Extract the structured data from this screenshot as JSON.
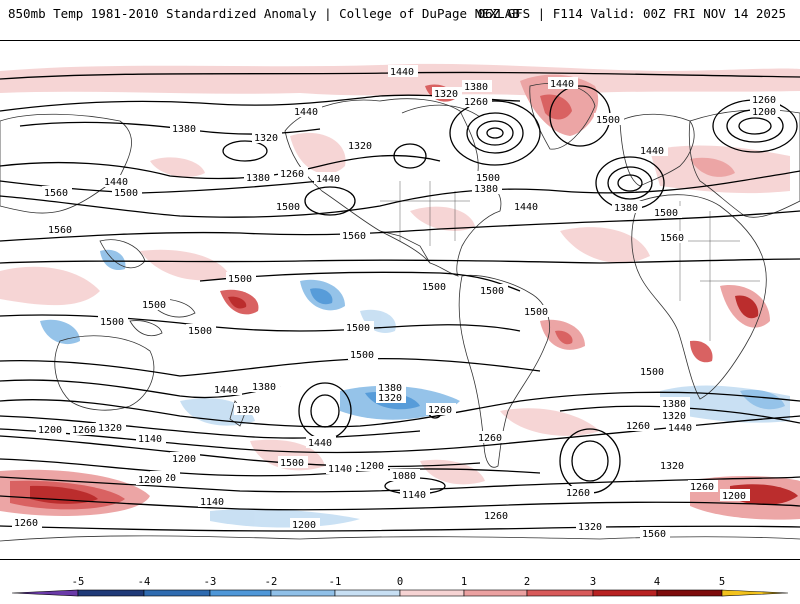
{
  "header": {
    "title": "850mb Temp 1981-2010 Standardized Anomaly | College of DuPage NEXLAB",
    "run_info": "06Z GFS | F114 Valid: 00Z FRI NOV 14 2025"
  },
  "contours": {
    "labels": [
      {
        "id": "c01",
        "text": "1440"
      },
      {
        "id": "c02",
        "text": "1380"
      },
      {
        "id": "c03",
        "text": "1320"
      },
      {
        "id": "c04",
        "text": "1260"
      },
      {
        "id": "c05",
        "text": "1440"
      },
      {
        "id": "c06",
        "text": "1500"
      },
      {
        "id": "c07",
        "text": "1440"
      },
      {
        "id": "c08",
        "text": "1380"
      },
      {
        "id": "c09",
        "text": "1260"
      },
      {
        "id": "c10",
        "text": "1200"
      },
      {
        "id": "c11",
        "text": "1440"
      },
      {
        "id": "c12",
        "text": "1380"
      },
      {
        "id": "c13",
        "text": "1320"
      },
      {
        "id": "c14",
        "text": "1320"
      },
      {
        "id": "c15",
        "text": "1440"
      },
      {
        "id": "c16",
        "text": "1500"
      },
      {
        "id": "c17",
        "text": "1380"
      },
      {
        "id": "c18",
        "text": "1260"
      },
      {
        "id": "c19",
        "text": "1440"
      },
      {
        "id": "c20",
        "text": "1560"
      },
      {
        "id": "c21",
        "text": "1500"
      },
      {
        "id": "c22",
        "text": "1440"
      },
      {
        "id": "c23",
        "text": "1380"
      },
      {
        "id": "c24",
        "text": "1500"
      },
      {
        "id": "c25",
        "text": "1560"
      },
      {
        "id": "c26",
        "text": "1500"
      },
      {
        "id": "c27",
        "text": "1560"
      },
      {
        "id": "c28",
        "text": "1560"
      },
      {
        "id": "c29",
        "text": "1500"
      },
      {
        "id": "c30",
        "text": "1500"
      },
      {
        "id": "c31",
        "text": "1500"
      },
      {
        "id": "c32",
        "text": "1500"
      },
      {
        "id": "c33",
        "text": "1500"
      },
      {
        "id": "c34",
        "text": "1500"
      },
      {
        "id": "c35",
        "text": "1500"
      },
      {
        "id": "c36",
        "text": "1500"
      },
      {
        "id": "c37",
        "text": "1500"
      },
      {
        "id": "c38",
        "text": "1440"
      },
      {
        "id": "c39",
        "text": "1380"
      },
      {
        "id": "c40",
        "text": "1320"
      },
      {
        "id": "c41",
        "text": "1260"
      },
      {
        "id": "c42",
        "text": "1200"
      },
      {
        "id": "c43",
        "text": "1140"
      },
      {
        "id": "c44",
        "text": "1200"
      },
      {
        "id": "c45",
        "text": "1320"
      },
      {
        "id": "c46",
        "text": "1500"
      },
      {
        "id": "c47",
        "text": "1440"
      },
      {
        "id": "c48",
        "text": "1380"
      },
      {
        "id": "c49",
        "text": "1320"
      },
      {
        "id": "c50",
        "text": "1260"
      },
      {
        "id": "c51",
        "text": "1200"
      },
      {
        "id": "c52",
        "text": "1140"
      },
      {
        "id": "c53",
        "text": "1080"
      },
      {
        "id": "c54",
        "text": "1140"
      },
      {
        "id": "c55",
        "text": "1140"
      },
      {
        "id": "c56",
        "text": "1200"
      },
      {
        "id": "c57",
        "text": "1260"
      },
      {
        "id": "c58",
        "text": "1320"
      },
      {
        "id": "c59",
        "text": "1260"
      },
      {
        "id": "c60",
        "text": "1560"
      },
      {
        "id": "c61",
        "text": "1500"
      },
      {
        "id": "c62",
        "text": "1380"
      },
      {
        "id": "c63",
        "text": "1320"
      },
      {
        "id": "c64",
        "text": "1440"
      },
      {
        "id": "c65",
        "text": "1260"
      },
      {
        "id": "c66",
        "text": "1260"
      },
      {
        "id": "c67",
        "text": "1320"
      },
      {
        "id": "c68",
        "text": "1200"
      },
      {
        "id": "c69",
        "text": "1260"
      },
      {
        "id": "c70",
        "text": "1260"
      },
      {
        "id": "c71",
        "text": "1320"
      },
      {
        "id": "c72",
        "text": "1200"
      }
    ]
  },
  "colorbar": {
    "ticks": [
      "-5",
      "-4",
      "-3",
      "-2",
      "-1",
      "0",
      "1",
      "2",
      "3",
      "4",
      "5"
    ],
    "colors": {
      "extreme_low": "#6a3aa8",
      "n5": "#1f3a78",
      "n4": "#2f6bb0",
      "n3": "#4f97d8",
      "n2": "#90c0e8",
      "n1": "#c7dff3",
      "zero": "#ffffff",
      "p1": "#f6d3d3",
      "p2": "#eba1a1",
      "p3": "#d85a5a",
      "p4": "#b82222",
      "p5": "#7e0c0c",
      "extreme_high": "#f2c21c"
    }
  }
}
